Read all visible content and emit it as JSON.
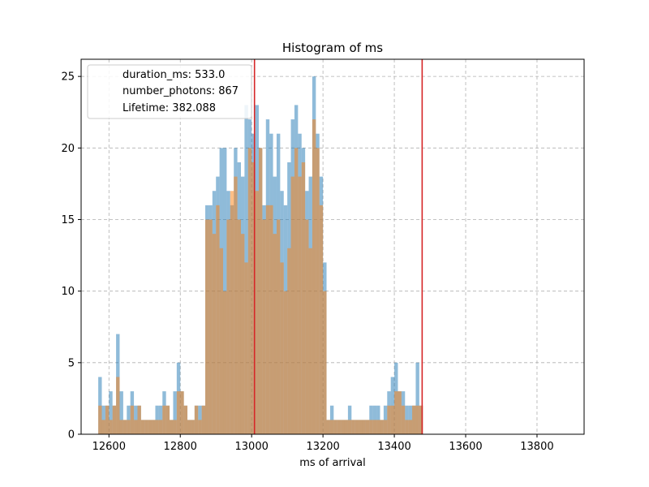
{
  "chart_data": {
    "type": "bar",
    "title": "Histogram of ms",
    "xlabel": "ms of arrival",
    "ylabel": "",
    "xlim": [
      12522,
      13932
    ],
    "ylim": [
      0,
      26.2
    ],
    "grid": true,
    "legend_placement": "top-left",
    "legend": [
      "duration_ms: 533.0",
      "number_photons: 867",
      "Lifetime: 382.088"
    ],
    "xticks": [
      12600,
      12800,
      13000,
      13200,
      13400,
      13600,
      13800
    ],
    "yticks": [
      0,
      5,
      10,
      15,
      20,
      25
    ],
    "x_start": 12570,
    "bin_width": 10,
    "series": [
      {
        "color": "#1f77b4",
        "values": [
          4,
          2,
          2,
          3,
          2,
          7,
          3,
          1,
          2,
          3,
          2,
          2,
          1,
          1,
          1,
          1,
          2,
          2,
          3,
          2,
          1,
          3,
          5,
          3,
          2,
          1,
          1,
          2,
          2,
          2,
          16,
          16,
          17,
          18,
          20,
          20,
          17,
          16,
          20,
          19,
          18,
          23,
          22,
          21,
          23,
          20,
          16,
          22,
          21,
          18,
          21,
          17,
          16,
          19,
          22,
          23,
          21,
          20,
          17,
          18,
          25,
          21,
          18,
          12,
          1,
          2,
          1,
          1,
          1,
          1,
          2,
          1,
          1,
          1,
          1,
          1,
          2,
          2,
          2,
          1,
          2,
          3,
          4,
          5,
          3,
          3,
          2,
          2,
          2,
          5,
          2
        ]
      },
      {
        "color": "#ff7f0e",
        "values": [
          2,
          1,
          2,
          1,
          2,
          4,
          1,
          1,
          1,
          2,
          1,
          2,
          1,
          1,
          1,
          1,
          1,
          1,
          2,
          2,
          1,
          1,
          3,
          3,
          2,
          1,
          1,
          2,
          1,
          2,
          15,
          15,
          14,
          16,
          13,
          10,
          15,
          17,
          18,
          15,
          14,
          12,
          20,
          19,
          17,
          20,
          15,
          16,
          16,
          14,
          15,
          12,
          10,
          13,
          18,
          20,
          18,
          19,
          15,
          13,
          22,
          20,
          16,
          10,
          1,
          1,
          1,
          1,
          1,
          1,
          1,
          1,
          1,
          1,
          1,
          1,
          1,
          1,
          1,
          1,
          1,
          2,
          2,
          3,
          3,
          2,
          1,
          1,
          2,
          2,
          2
        ]
      }
    ],
    "vlines": [
      {
        "x": 13008,
        "color": "#d62728"
      },
      {
        "x": 13478,
        "color": "#d62728"
      }
    ]
  }
}
